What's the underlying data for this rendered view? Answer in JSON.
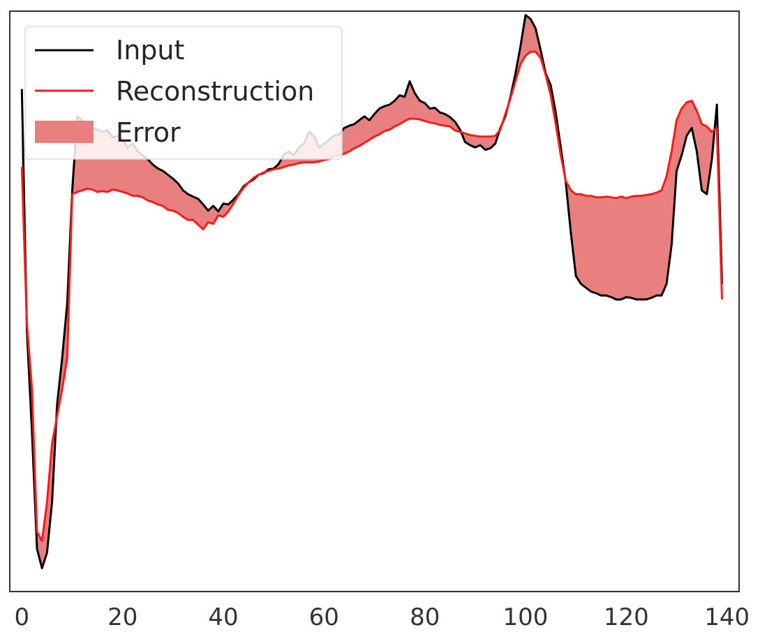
{
  "chart_data": {
    "type": "line",
    "title": "",
    "xlabel": "",
    "ylabel": "",
    "xlim": [
      -2.4,
      142.4
    ],
    "ylim": [
      -4.55,
      2.9
    ],
    "xticks": [
      0,
      20,
      40,
      60,
      80,
      100,
      120,
      140
    ],
    "xtick_labels": [
      "0",
      "20",
      "40",
      "60",
      "80",
      "100",
      "120",
      "140"
    ],
    "yticks_visible": false,
    "grid": false,
    "legend": {
      "position": "top-left",
      "entries": [
        {
          "label": "Input",
          "kind": "line",
          "color": "#000000"
        },
        {
          "label": "Reconstruction",
          "kind": "line",
          "color": "#ff1a1a"
        },
        {
          "label": "Error",
          "kind": "patch",
          "color": "#e88080"
        }
      ]
    },
    "x": [
      0,
      1,
      2,
      3,
      4,
      5,
      6,
      7,
      8,
      9,
      10,
      11,
      12,
      13,
      14,
      15,
      16,
      17,
      18,
      19,
      20,
      21,
      22,
      23,
      24,
      25,
      26,
      27,
      28,
      29,
      30,
      31,
      32,
      33,
      34,
      35,
      36,
      37,
      38,
      39,
      40,
      41,
      42,
      43,
      44,
      45,
      46,
      47,
      48,
      49,
      50,
      51,
      52,
      53,
      54,
      55,
      56,
      57,
      58,
      59,
      60,
      61,
      62,
      63,
      64,
      65,
      66,
      67,
      68,
      69,
      70,
      71,
      72,
      73,
      74,
      75,
      76,
      77,
      78,
      79,
      80,
      81,
      82,
      83,
      84,
      85,
      86,
      87,
      88,
      89,
      90,
      91,
      92,
      93,
      94,
      95,
      96,
      97,
      98,
      99,
      100,
      101,
      102,
      103,
      104,
      105,
      106,
      107,
      108,
      109,
      110,
      111,
      112,
      113,
      114,
      115,
      116,
      117,
      118,
      119,
      120,
      121,
      122,
      123,
      124,
      125,
      126,
      127,
      128,
      129,
      130,
      131,
      132,
      133,
      134,
      135,
      136,
      137,
      138,
      139,
      140
    ],
    "series": [
      {
        "name": "Input",
        "color": "#000000",
        "values": [
          1.9,
          -1.2,
          -2.5,
          -4.0,
          -4.25,
          -4.05,
          -3.4,
          -2.15,
          -1.55,
          -0.85,
          0.6,
          1.55,
          1.5,
          1.42,
          1.4,
          1.38,
          1.35,
          1.37,
          1.28,
          1.3,
          1.25,
          1.15,
          1.2,
          1.1,
          1.05,
          1.0,
          0.93,
          0.88,
          0.85,
          0.8,
          0.75,
          0.69,
          0.6,
          0.55,
          0.52,
          0.49,
          0.42,
          0.34,
          0.4,
          0.33,
          0.43,
          0.42,
          0.48,
          0.55,
          0.65,
          0.7,
          0.74,
          0.8,
          0.82,
          0.87,
          0.88,
          0.94,
          1.06,
          1.1,
          1.05,
          1.15,
          1.2,
          1.35,
          1.3,
          1.15,
          1.2,
          1.25,
          1.3,
          1.32,
          1.4,
          1.43,
          1.45,
          1.5,
          1.55,
          1.5,
          1.58,
          1.65,
          1.68,
          1.7,
          1.75,
          1.82,
          1.8,
          2.0,
          1.85,
          1.75,
          1.72,
          1.65,
          1.66,
          1.6,
          1.58,
          1.54,
          1.48,
          1.38,
          1.22,
          1.18,
          1.15,
          1.18,
          1.12,
          1.14,
          1.2,
          1.4,
          1.55,
          1.8,
          2.1,
          2.45,
          2.85,
          2.8,
          2.68,
          2.4,
          2.1,
          1.95,
          1.6,
          1.15,
          0.7,
          0.05,
          -0.5,
          -0.6,
          -0.65,
          -0.7,
          -0.72,
          -0.75,
          -0.75,
          -0.77,
          -0.8,
          -0.8,
          -0.77,
          -0.78,
          -0.8,
          -0.8,
          -0.8,
          -0.78,
          -0.75,
          -0.75,
          -0.6,
          -0.1,
          0.85,
          1.05,
          1.3,
          1.4,
          1.1,
          0.6,
          0.55,
          1.0,
          1.7,
          -0.6,
          null
        ]
      },
      {
        "name": "Reconstruction",
        "color": "#ff1a1a",
        "values": [
          0.9,
          -1.1,
          -1.95,
          -3.78,
          -3.9,
          -3.4,
          -2.65,
          -2.3,
          -1.95,
          -1.55,
          0.55,
          0.58,
          0.6,
          0.62,
          0.61,
          0.58,
          0.59,
          0.58,
          0.61,
          0.6,
          0.58,
          0.56,
          0.53,
          0.53,
          0.51,
          0.47,
          0.45,
          0.42,
          0.4,
          0.35,
          0.34,
          0.31,
          0.26,
          0.22,
          0.22,
          0.16,
          0.1,
          0.19,
          0.17,
          0.28,
          0.26,
          0.33,
          0.43,
          0.54,
          0.63,
          0.7,
          0.76,
          0.8,
          0.83,
          0.85,
          0.87,
          0.88,
          0.9,
          0.92,
          0.93,
          0.95,
          0.96,
          0.96,
          0.96,
          0.97,
          0.99,
          1.0,
          1.04,
          1.05,
          1.07,
          1.1,
          1.14,
          1.17,
          1.21,
          1.25,
          1.29,
          1.32,
          1.36,
          1.38,
          1.42,
          1.45,
          1.49,
          1.52,
          1.52,
          1.51,
          1.49,
          1.47,
          1.46,
          1.44,
          1.43,
          1.42,
          1.37,
          1.35,
          1.33,
          1.31,
          1.3,
          1.29,
          1.29,
          1.29,
          1.3,
          1.38,
          1.58,
          1.78,
          2.0,
          2.22,
          2.33,
          2.38,
          2.38,
          2.3,
          2.08,
          1.82,
          1.45,
          1.05,
          0.72,
          0.6,
          0.55,
          0.55,
          0.53,
          0.53,
          0.51,
          0.51,
          0.52,
          0.51,
          0.5,
          0.52,
          0.5,
          0.52,
          0.53,
          0.53,
          0.54,
          0.55,
          0.57,
          0.6,
          0.78,
          1.1,
          1.5,
          1.65,
          1.73,
          1.75,
          1.62,
          1.45,
          1.42,
          1.35,
          1.4,
          -0.8,
          null
        ]
      }
    ],
    "error_fill": {
      "between": [
        "Input",
        "Reconstruction"
      ],
      "color": "#e88080",
      "label": "Error"
    }
  }
}
